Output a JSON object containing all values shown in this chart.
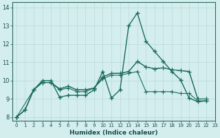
{
  "xlabel": "Humidex (Indice chaleur)",
  "background_color": "#d4eeee",
  "grid_color": "#c0dede",
  "line_color": "#1a6b5a",
  "xlim": [
    -0.5,
    23
  ],
  "ylim": [
    7.8,
    14.3
  ],
  "yticks": [
    8,
    9,
    10,
    11,
    12,
    13,
    14
  ],
  "xticks": [
    0,
    1,
    2,
    3,
    4,
    5,
    6,
    7,
    8,
    9,
    10,
    11,
    12,
    13,
    14,
    15,
    16,
    17,
    18,
    19,
    20,
    21,
    22,
    23
  ],
  "series": [
    {
      "x": [
        0,
        1,
        2,
        3,
        4,
        5,
        6,
        7,
        8,
        9,
        10,
        11,
        12,
        13,
        14,
        15,
        16,
        17,
        18,
        19,
        20,
        21,
        22
      ],
      "y": [
        8.0,
        8.4,
        9.5,
        10.0,
        10.0,
        9.1,
        9.2,
        9.2,
        9.2,
        9.5,
        10.5,
        9.05,
        9.5,
        13.0,
        13.7,
        12.15,
        11.6,
        11.05,
        10.5,
        10.05,
        9.05,
        8.85,
        8.9
      ],
      "marker": "+",
      "markersize": 5,
      "linewidth": 1.0
    },
    {
      "x": [
        0,
        1,
        2,
        3,
        4,
        5,
        6,
        7,
        8,
        9,
        10,
        11,
        12,
        13,
        14,
        15,
        16,
        17,
        18,
        19,
        20,
        21,
        22
      ],
      "y": [
        8.0,
        8.4,
        9.5,
        9.9,
        9.9,
        9.5,
        9.6,
        9.4,
        9.4,
        9.6,
        10.1,
        10.3,
        10.3,
        10.4,
        10.5,
        9.4,
        9.4,
        9.4,
        9.4,
        9.3,
        9.3,
        8.9,
        8.9
      ],
      "marker": "+",
      "markersize": 4,
      "linewidth": 0.8
    },
    {
      "x": [
        0,
        1,
        2,
        3,
        4,
        5,
        6,
        7,
        8,
        9,
        10,
        11,
        12,
        13,
        14,
        15,
        16,
        17,
        18,
        19,
        20,
        21,
        22
      ],
      "y": [
        8.0,
        8.4,
        9.5,
        9.9,
        9.9,
        9.55,
        9.7,
        9.5,
        9.5,
        9.6,
        10.2,
        10.4,
        10.4,
        10.5,
        11.05,
        10.75,
        10.65,
        10.7,
        10.6,
        10.55,
        10.5,
        9.0,
        9.0
      ],
      "marker": "+",
      "markersize": 4,
      "linewidth": 0.8
    },
    {
      "x": [
        0,
        2,
        3,
        4,
        5,
        6,
        7,
        8,
        9,
        10,
        11,
        12,
        13,
        14,
        15,
        16,
        17,
        18,
        19,
        20,
        21,
        22
      ],
      "y": [
        8.0,
        9.5,
        9.9,
        9.9,
        9.55,
        9.7,
        9.5,
        9.5,
        9.6,
        10.2,
        10.4,
        10.4,
        10.5,
        11.05,
        10.75,
        10.65,
        10.7,
        10.6,
        10.55,
        10.5,
        9.0,
        9.0
      ],
      "marker": "+",
      "markersize": 4,
      "linewidth": 0.8
    }
  ]
}
